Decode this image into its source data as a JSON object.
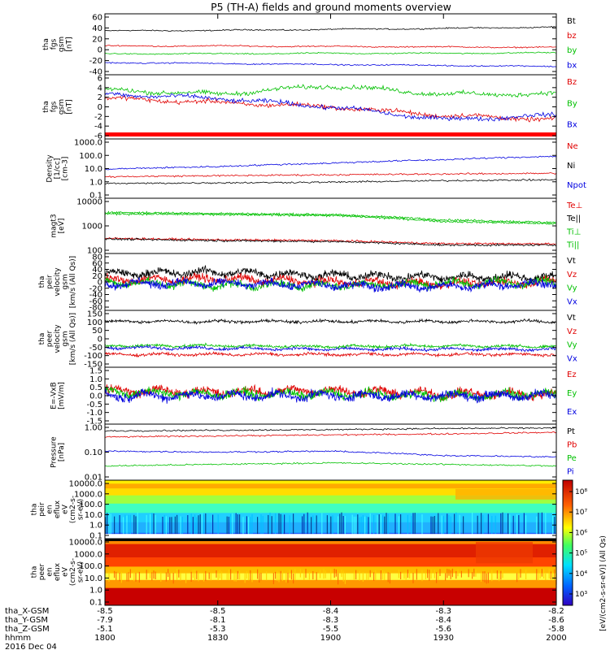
{
  "title": "P5 (TH-A) fields and ground moments overview",
  "panels": [
    {
      "key": "fgs",
      "ylabel": [
        "tha",
        "fgs",
        "gsm",
        "[nT]"
      ],
      "ticks": [
        "60",
        "40",
        "20",
        "0",
        "-20",
        "-40"
      ],
      "legend": [
        {
          "text": "Bt",
          "color": "#000000"
        },
        {
          "text": "bz",
          "color": "#e00000"
        },
        {
          "text": "by",
          "color": "#00c000"
        },
        {
          "text": "bx",
          "color": "#0000e0"
        }
      ]
    },
    {
      "key": "fgs_dsl",
      "ylabel": [
        "tha",
        "fgs",
        "gsm",
        "[nT]"
      ],
      "ticks": [
        "6",
        "4",
        "2",
        "0",
        "-2",
        "-4",
        "-6"
      ],
      "legend": [
        {
          "text": "Bz",
          "color": "#e00000"
        },
        {
          "text": "By",
          "color": "#00c000"
        },
        {
          "text": "Bx",
          "color": "#0000e0"
        }
      ]
    },
    {
      "key": "density",
      "ylabel": [
        "Density",
        "[1/cc]",
        "[cm-3]"
      ],
      "ticks": [
        "1000.0",
        "100.0",
        "10.0",
        "1.0",
        "0.1"
      ],
      "legend": [
        {
          "text": "Ne",
          "color": "#e00000"
        },
        {
          "text": "Ni",
          "color": "#000000"
        },
        {
          "text": "Npot",
          "color": "#0000e0"
        }
      ]
    },
    {
      "key": "temp",
      "ylabel": [
        "magt3",
        "[eV]"
      ],
      "ticks": [
        "10000",
        "1000",
        "100"
      ],
      "legend": [
        {
          "text": "Te⊥",
          "color": "#e00000"
        },
        {
          "text": "Te||",
          "color": "#000000"
        },
        {
          "text": "Ti⊥",
          "color": "#00c000"
        },
        {
          "text": "Ti||",
          "color": "#00c000"
        }
      ]
    },
    {
      "key": "peir_vel",
      "ylabel": [
        "tha",
        "peir",
        "velocity",
        "gsm",
        "[km/s (All Qs)]"
      ],
      "ticks": [
        "80",
        "60",
        "40",
        "20",
        "0",
        "-20",
        "-40",
        "-60",
        "-80"
      ],
      "legend": [
        {
          "text": "Vt",
          "color": "#000000"
        },
        {
          "text": "Vz",
          "color": "#e00000"
        },
        {
          "text": "Vy",
          "color": "#00c000"
        },
        {
          "text": "Vx",
          "color": "#0000e0"
        }
      ]
    },
    {
      "key": "peer_vel",
      "ylabel": [
        "tha",
        "peer",
        "velocity",
        "gsm",
        "[km/s (All Qs)]"
      ],
      "ticks": [
        "150",
        "100",
        "50",
        "0",
        "-50",
        "-100",
        "-150"
      ],
      "legend": [
        {
          "text": "Vt",
          "color": "#000000"
        },
        {
          "text": "Vz",
          "color": "#e00000"
        },
        {
          "text": "Vy",
          "color": "#00c000"
        },
        {
          "text": "Vx",
          "color": "#0000e0"
        }
      ]
    },
    {
      "key": "efield",
      "ylabel": [
        "E=-VxB",
        "[mV/m]"
      ],
      "ticks": [
        "1.5",
        "1.0",
        "0.5",
        "0.0",
        "-0.5",
        "-1.0",
        "-1.5"
      ],
      "legend": [
        {
          "text": "Ez",
          "color": "#e00000"
        },
        {
          "text": "Ey",
          "color": "#00c000"
        },
        {
          "text": "Ex",
          "color": "#0000e0"
        }
      ]
    },
    {
      "key": "pressure",
      "ylabel": [
        "Pressure",
        "[nPa]"
      ],
      "ticks": [
        "1.00",
        "0.10",
        "0.01"
      ],
      "legend": [
        {
          "text": "Pt",
          "color": "#000000"
        },
        {
          "text": "Pb",
          "color": "#e00000"
        },
        {
          "text": "Pe",
          "color": "#00c000"
        },
        {
          "text": "Pi",
          "color": "#0000e0"
        }
      ]
    },
    {
      "key": "peir_en",
      "ylabel": [
        "tha",
        "peir",
        "en",
        "eflux",
        "eV",
        "(cm2-s-",
        "sr-eV)"
      ],
      "ticks": [
        "10000.0",
        "1000.0",
        "100.0",
        "10.0",
        "1.0",
        "0.1"
      ],
      "legend": []
    },
    {
      "key": "peer_en",
      "ylabel": [
        "tha",
        "peer",
        "en",
        "eflux",
        "eV",
        "(cm2-s-",
        "sr-eV)"
      ],
      "ticks": [
        "10000.0",
        "1000.0",
        "100.0",
        "10.0",
        "1.0",
        "0.1"
      ],
      "legend": []
    }
  ],
  "colorbar": {
    "ticks": [
      "10⁸",
      "10⁷",
      "10⁶",
      "10⁵",
      "10⁴",
      "10³"
    ],
    "label": "[eV/(cm2-s-sr-eV)]  (All Qs)"
  },
  "xaxis": {
    "rows": [
      {
        "label": "tha_X-GSM",
        "values": [
          "-8.5",
          "-8.5",
          "-8.4",
          "-8.3",
          "-8.2"
        ]
      },
      {
        "label": "tha_Y-GSM",
        "values": [
          "-7.9",
          "-8.1",
          "-8.3",
          "-8.4",
          "-8.6"
        ]
      },
      {
        "label": "tha_Z-GSM",
        "values": [
          "-5.1",
          "-5.3",
          "-5.5",
          "-5.6",
          "-5.8"
        ]
      },
      {
        "label": "hhmm",
        "values": [
          "1800",
          "1830",
          "1900",
          "1930",
          "2000"
        ]
      }
    ],
    "date": "2016 Dec 04"
  },
  "chart_data": [
    {
      "type": "line",
      "title": "P5 (TH-A) fields and ground moments overview",
      "ylabel": "tha fgs gsm [nT]",
      "x": [
        "1800",
        "1830",
        "1900",
        "1930",
        "2000"
      ],
      "ylim": [
        -50,
        65
      ],
      "series": [
        {
          "name": "Bt",
          "values": [
            35,
            36,
            38,
            40,
            43
          ]
        },
        {
          "name": "bz",
          "values": [
            4,
            4,
            3,
            2,
            1
          ]
        },
        {
          "name": "by",
          "values": [
            -12,
            -12,
            -11,
            -11,
            -10
          ]
        },
        {
          "name": "bx",
          "values": [
            -30,
            -32,
            -34,
            -36,
            -38
          ]
        }
      ]
    },
    {
      "type": "line",
      "ylabel": "tha fgs gsm [nT]",
      "x": [
        "1800",
        "1830",
        "1900",
        "1930",
        "2000"
      ],
      "ylim": [
        -7,
        7
      ],
      "series": [
        {
          "name": "Bz",
          "values": [
            2,
            1,
            0,
            -2,
            -3
          ]
        },
        {
          "name": "By",
          "values": [
            4,
            3,
            5,
            3,
            3
          ]
        },
        {
          "name": "Bx",
          "values": [
            3,
            2,
            0,
            -3,
            -2
          ]
        }
      ]
    },
    {
      "type": "line",
      "ylabel": "Density [1/cc] [cm-3]",
      "x": [
        "1800",
        "1830",
        "1900",
        "1930",
        "2000"
      ],
      "ylim": [
        0.1,
        1000
      ],
      "yscale": "log",
      "series": [
        {
          "name": "Ne",
          "values": [
            2.5,
            3,
            3.5,
            4,
            4.5
          ]
        },
        {
          "name": "Ni",
          "values": [
            0.8,
            0.9,
            1,
            1.3,
            1.5
          ]
        },
        {
          "name": "Npot",
          "values": [
            9,
            14,
            25,
            45,
            80
          ]
        }
      ]
    },
    {
      "type": "line",
      "ylabel": "magt3 [eV]",
      "x": [
        "1800",
        "1830",
        "1900",
        "1930",
        "2000"
      ],
      "ylim": [
        30,
        10000
      ],
      "yscale": "log",
      "series": [
        {
          "name": "Te⊥",
          "values": [
            130,
            110,
            100,
            70,
            70
          ]
        },
        {
          "name": "Te||",
          "values": [
            120,
            100,
            90,
            60,
            60
          ]
        },
        {
          "name": "Ti⊥",
          "values": [
            2600,
            2300,
            2000,
            1100,
            800
          ]
        },
        {
          "name": "Ti||",
          "values": [
            2200,
            2000,
            1800,
            900,
            700
          ]
        }
      ]
    },
    {
      "type": "line",
      "ylabel": "tha peir velocity gsm [km/s (All Qs)]",
      "x": [
        "1800",
        "1830",
        "1900",
        "1930",
        "2000"
      ],
      "ylim": [
        -80,
        80
      ],
      "series": [
        {
          "name": "Vt",
          "values": [
            25,
            30,
            20,
            15,
            15
          ]
        },
        {
          "name": "Vz",
          "values": [
            5,
            10,
            0,
            -5,
            0
          ]
        },
        {
          "name": "Vy",
          "values": [
            0,
            -10,
            -10,
            -5,
            0
          ]
        },
        {
          "name": "Vx",
          "values": [
            -5,
            -5,
            -10,
            -15,
            -5
          ]
        }
      ]
    },
    {
      "type": "line",
      "ylabel": "tha peer velocity gsm [km/s (All Qs)]",
      "x": [
        "1800",
        "1830",
        "1900",
        "1930",
        "2000"
      ],
      "ylim": [
        -150,
        150
      ],
      "series": [
        {
          "name": "Vt",
          "values": [
            100,
            100,
            100,
            100,
            100
          ]
        },
        {
          "name": "Vz",
          "values": [
            -90,
            -90,
            -90,
            -90,
            -90
          ]
        },
        {
          "name": "Vy",
          "values": [
            -40,
            -40,
            -45,
            -40,
            -45
          ]
        },
        {
          "name": "Vx",
          "values": [
            -50,
            -55,
            -60,
            -60,
            -60
          ]
        }
      ]
    },
    {
      "type": "line",
      "ylabel": "E=-VxB [mV/m]",
      "x": [
        "1800",
        "1830",
        "1900",
        "1930",
        "2000"
      ],
      "ylim": [
        -1.5,
        1.5
      ],
      "series": [
        {
          "name": "Ez",
          "values": [
            0.3,
            0.2,
            0.3,
            0.1,
            0.1
          ]
        },
        {
          "name": "Ey",
          "values": [
            0.2,
            0.1,
            0.1,
            0,
            0.1
          ]
        },
        {
          "name": "Ex",
          "values": [
            0,
            0,
            0,
            0,
            0
          ]
        }
      ]
    },
    {
      "type": "line",
      "ylabel": "Pressure [nPa]",
      "x": [
        "1800",
        "1830",
        "1900",
        "1930",
        "2000"
      ],
      "ylim": [
        0.01,
        1.2
      ],
      "yscale": "log",
      "series": [
        {
          "name": "Pt",
          "values": [
            0.8,
            0.85,
            0.9,
            1.0,
            1.05
          ]
        },
        {
          "name": "Pb",
          "values": [
            0.45,
            0.5,
            0.55,
            0.6,
            0.7
          ]
        },
        {
          "name": "Pe",
          "values": [
            0.03,
            0.035,
            0.04,
            0.035,
            0.03
          ]
        },
        {
          "name": "Pi",
          "values": [
            0.12,
            0.11,
            0.12,
            0.08,
            0.07
          ]
        }
      ]
    },
    {
      "type": "heatmap",
      "ylabel": "tha peir en eflux eV (cm2-s- sr-eV)",
      "x": [
        "1800",
        "1830",
        "1900",
        "1930",
        "2000"
      ],
      "ylim": [
        0.1,
        20000
      ],
      "yscale": "log"
    },
    {
      "type": "heatmap",
      "ylabel": "tha peer en eflux eV (cm2-s- sr-eV)",
      "x": [
        "1800",
        "1830",
        "1900",
        "1930",
        "2000"
      ],
      "ylim": [
        0.1,
        20000
      ],
      "yscale": "log"
    }
  ]
}
